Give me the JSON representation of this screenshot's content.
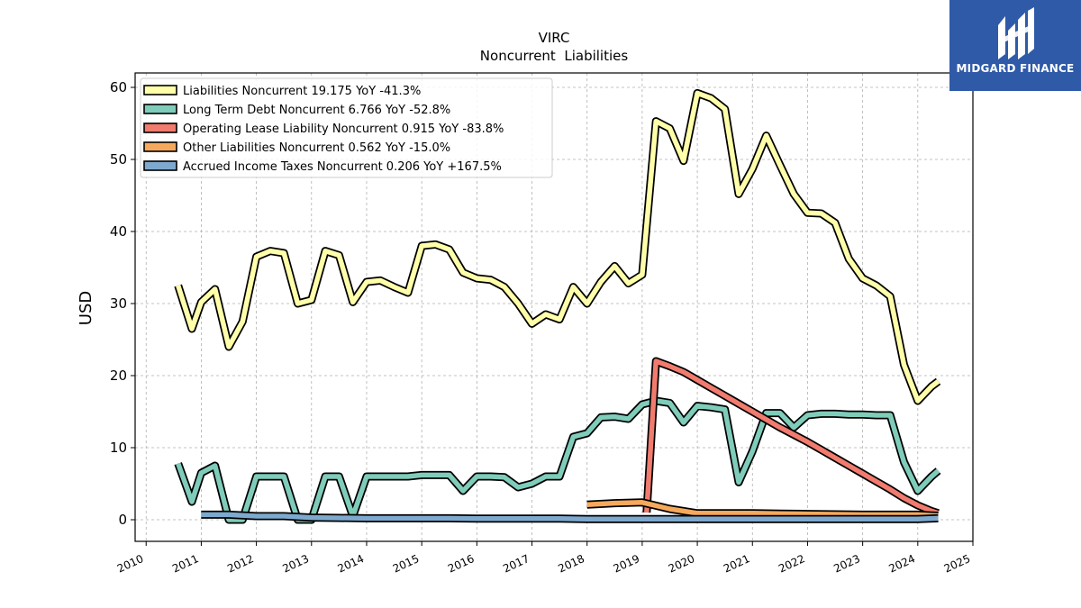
{
  "brand": {
    "name": "MIDGARD FINANCE",
    "bg_color": "#2f5aa8"
  },
  "chart_data": {
    "type": "line",
    "title": "VIRC",
    "subtitle": "Noncurrent  Liabilities",
    "ylabel": "USD",
    "xlabel": "",
    "xlim": [
      2009.8,
      2025.0
    ],
    "ylim": [
      -3,
      62
    ],
    "x_ticks": [
      "2010",
      "2011",
      "2012",
      "2013",
      "2014",
      "2015",
      "2016",
      "2017",
      "2018",
      "2019",
      "2020",
      "2021",
      "2022",
      "2023",
      "2024",
      "2025"
    ],
    "y_ticks": [
      "0",
      "10",
      "20",
      "30",
      "40",
      "50",
      "60"
    ],
    "grid": true,
    "legend_position": "top-left",
    "series": [
      {
        "name": "Liabilities Noncurrent",
        "legend": "Liabilities Noncurrent  19.175 YoY -41.3%",
        "color": "#ffffaa",
        "x": [
          2010.58,
          2010.83,
          2011.0,
          2011.25,
          2011.5,
          2011.75,
          2012.0,
          2012.25,
          2012.5,
          2012.75,
          2013.0,
          2013.25,
          2013.5,
          2013.75,
          2014.0,
          2014.25,
          2014.5,
          2014.75,
          2015.0,
          2015.25,
          2015.5,
          2015.75,
          2016.0,
          2016.25,
          2016.5,
          2016.75,
          2017.0,
          2017.25,
          2017.5,
          2017.75,
          2018.0,
          2018.25,
          2018.5,
          2018.75,
          2019.0,
          2019.25,
          2019.5,
          2019.75,
          2020.0,
          2020.25,
          2020.5,
          2020.75,
          2021.0,
          2021.25,
          2021.5,
          2021.75,
          2022.0,
          2022.25,
          2022.5,
          2022.75,
          2023.0,
          2023.25,
          2023.5,
          2023.75,
          2024.0,
          2024.25,
          2024.37
        ],
        "y": [
          32.5,
          26.5,
          30.2,
          32.0,
          24.0,
          27.5,
          36.5,
          37.3,
          37.0,
          30.0,
          30.5,
          37.3,
          36.7,
          30.2,
          33.0,
          33.2,
          32.3,
          31.5,
          38.0,
          38.2,
          37.5,
          34.3,
          33.5,
          33.3,
          32.3,
          30.0,
          27.2,
          28.5,
          27.8,
          32.3,
          30.0,
          33.0,
          35.2,
          32.8,
          34.0,
          55.3,
          54.3,
          49.8,
          59.2,
          58.5,
          57.0,
          45.2,
          48.7,
          53.3,
          49.2,
          45.2,
          42.6,
          42.5,
          41.2,
          36.2,
          33.5,
          32.5,
          31.0,
          21.5,
          16.5,
          18.5,
          19.2
        ]
      },
      {
        "name": "Long Term Debt Noncurrent",
        "legend": "Long Term Debt Noncurrent  6.766 YoY -52.8%",
        "color": "#7fccba",
        "x": [
          2010.58,
          2010.83,
          2011.0,
          2011.25,
          2011.5,
          2011.75,
          2012.0,
          2012.25,
          2012.5,
          2012.75,
          2013.0,
          2013.25,
          2013.5,
          2013.75,
          2014.0,
          2014.25,
          2014.5,
          2014.75,
          2015.0,
          2015.25,
          2015.5,
          2015.75,
          2016.0,
          2016.25,
          2016.5,
          2016.75,
          2017.0,
          2017.25,
          2017.5,
          2017.75,
          2018.0,
          2018.25,
          2018.5,
          2018.75,
          2019.0,
          2019.25,
          2019.5,
          2019.75,
          2020.0,
          2020.25,
          2020.5,
          2020.75,
          2021.0,
          2021.25,
          2021.5,
          2021.75,
          2022.0,
          2022.25,
          2022.5,
          2022.75,
          2023.0,
          2023.25,
          2023.5,
          2023.75,
          2024.0,
          2024.25,
          2024.37
        ],
        "y": [
          7.8,
          2.5,
          6.5,
          7.5,
          0.0,
          0.0,
          6.0,
          6.0,
          6.0,
          0.0,
          0.0,
          6.0,
          6.0,
          0.5,
          6.0,
          6.0,
          6.0,
          6.0,
          6.2,
          6.2,
          6.2,
          4.0,
          6.0,
          6.0,
          5.9,
          4.5,
          5.0,
          6.0,
          6.0,
          11.5,
          12.0,
          14.2,
          14.3,
          14.0,
          16.0,
          16.5,
          16.2,
          13.5,
          15.8,
          15.6,
          15.3,
          5.2,
          9.5,
          14.8,
          14.8,
          12.8,
          14.5,
          14.7,
          14.7,
          14.6,
          14.6,
          14.5,
          14.5,
          8.0,
          4.0,
          6.0,
          6.8
        ]
      },
      {
        "name": "Operating Lease Liability Noncurrent",
        "legend": "Operating Lease Liability Noncurrent  0.915 YoY -83.8%",
        "color": "#f07b6e",
        "x": [
          2019.08,
          2019.25,
          2019.5,
          2019.75,
          2020.0,
          2020.25,
          2020.5,
          2020.75,
          2021.0,
          2021.25,
          2021.5,
          2021.75,
          2022.0,
          2022.25,
          2022.5,
          2022.75,
          2023.0,
          2023.25,
          2023.5,
          2023.75,
          2024.0,
          2024.25,
          2024.37
        ],
        "y": [
          1.0,
          22.0,
          21.3,
          20.5,
          19.4,
          18.3,
          17.2,
          16.1,
          15.0,
          13.9,
          12.8,
          11.8,
          10.8,
          9.7,
          8.6,
          7.5,
          6.4,
          5.3,
          4.2,
          3.0,
          2.0,
          1.2,
          0.9
        ]
      },
      {
        "name": "Other Liabilities Noncurrent",
        "legend": "Other Liabilities Noncurrent  0.562 YoY -15.0%",
        "color": "#f6a95c",
        "x": [
          2018.0,
          2018.5,
          2019.0,
          2019.5,
          2020.0,
          2020.5,
          2021.0,
          2021.5,
          2022.0,
          2022.5,
          2023.0,
          2023.5,
          2024.0,
          2024.25,
          2024.37
        ],
        "y": [
          2.1,
          2.3,
          2.4,
          1.5,
          0.9,
          0.9,
          0.9,
          0.85,
          0.8,
          0.75,
          0.7,
          0.7,
          0.7,
          0.6,
          0.56
        ]
      },
      {
        "name": "Accrued Income Taxes Noncurrent",
        "legend": "Accrued Income Taxes Noncurrent  0.206 YoY +167.5%",
        "color": "#7ea9cf",
        "x": [
          2011.0,
          2011.5,
          2012.0,
          2012.5,
          2013.0,
          2013.5,
          2014.0,
          2014.5,
          2015.0,
          2015.5,
          2016.0,
          2016.5,
          2017.0,
          2017.5,
          2018.0,
          2018.5,
          2019.0,
          2019.5,
          2020.0,
          2020.5,
          2021.0,
          2021.5,
          2022.0,
          2022.5,
          2023.0,
          2023.5,
          2024.0,
          2024.37
        ],
        "y": [
          0.7,
          0.7,
          0.5,
          0.5,
          0.3,
          0.25,
          0.2,
          0.2,
          0.2,
          0.2,
          0.15,
          0.15,
          0.15,
          0.15,
          0.1,
          0.1,
          0.1,
          0.1,
          0.1,
          0.1,
          0.1,
          0.1,
          0.1,
          0.1,
          0.1,
          0.1,
          0.1,
          0.2
        ]
      }
    ]
  }
}
